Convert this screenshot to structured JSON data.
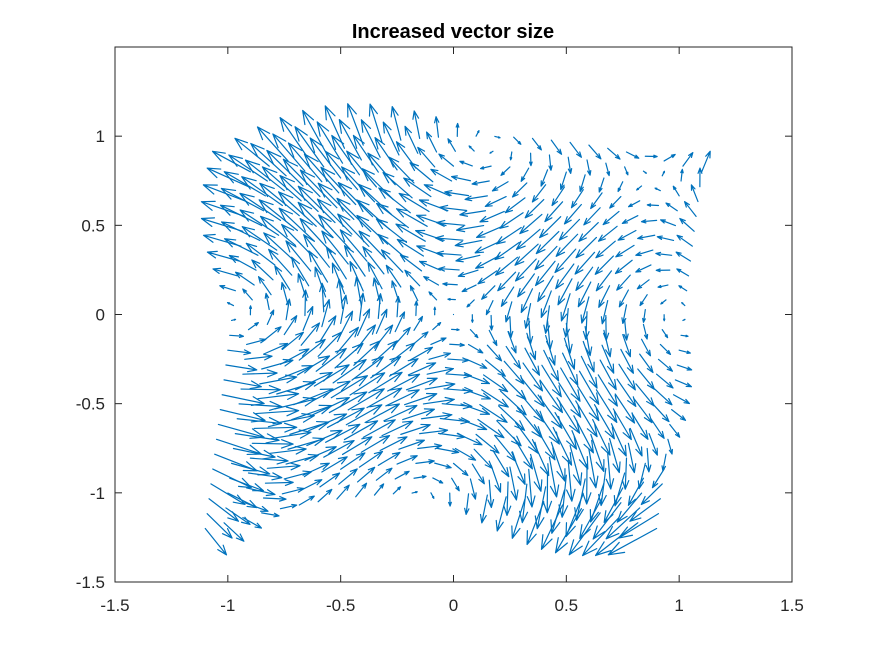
{
  "chart_data": {
    "type": "quiver",
    "title": "Increased vector size",
    "xlabel": "",
    "ylabel": "",
    "xlim": [
      -1.5,
      1.5
    ],
    "ylim": [
      -1.5,
      1.5
    ],
    "xticks": [
      -1.5,
      -1,
      -0.5,
      0,
      0.5,
      1,
      1.5
    ],
    "yticks": [
      -1.5,
      -1,
      -0.5,
      0,
      0.5,
      1
    ],
    "xtick_labels": [
      "-1.5",
      "-1",
      "-0.5",
      "0",
      "0.5",
      "1",
      "1.5"
    ],
    "ytick_labels": [
      "-1.5",
      "-1",
      "-0.5",
      "0",
      "0.5",
      "1"
    ],
    "grid": false,
    "box": true,
    "arrow_color": "#0072BD",
    "axis_color": "#262626",
    "grid_domain": {
      "u": [
        -1,
        1
      ],
      "v": [
        -1,
        1
      ],
      "n": 25,
      "mapping": "x = u + 0.1*v, y = v - 0.2*u^2"
    },
    "vector_field": "(u, v) = (-sin(pi*y) + x*y, -sin(pi*x) + y/2)",
    "scale": "increased"
  }
}
